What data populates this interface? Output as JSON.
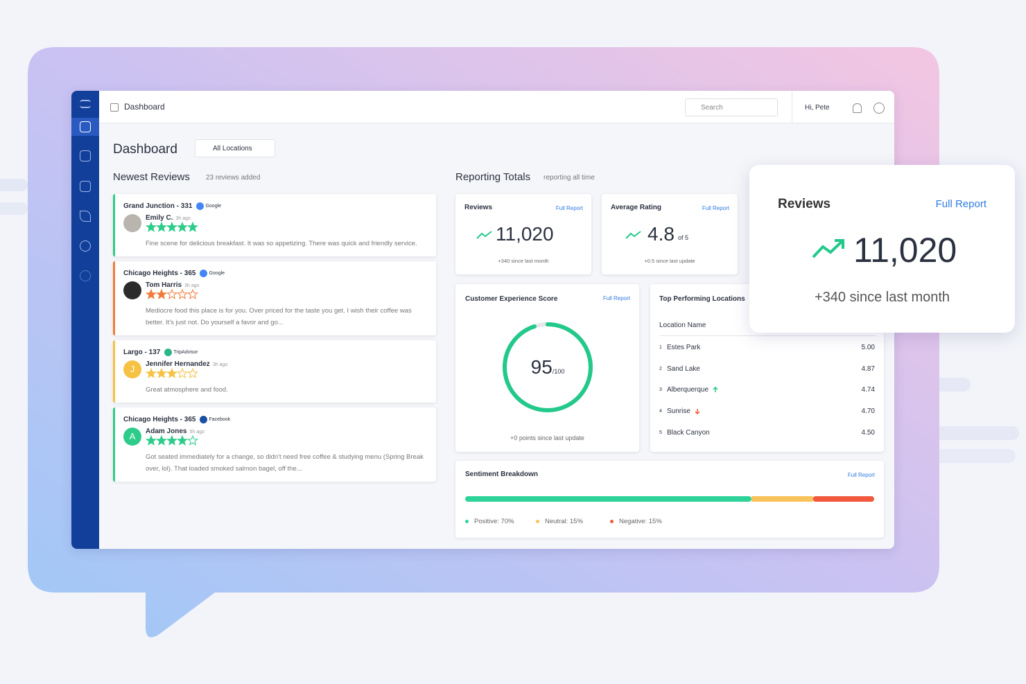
{
  "topbar": {
    "breadcrumb": "Dashboard",
    "search": "Search",
    "greeting": "Hi, Pete"
  },
  "page": {
    "title": "Dashboard",
    "location_filter": "All Locations"
  },
  "reviews": {
    "title": "Newest Reviews",
    "subtitle": "23 reviews added",
    "items": [
      {
        "location": "Grand Junction - 331",
        "source": "Google",
        "source_color": "#4285f4",
        "author": "Emily C.",
        "time": "3h ago",
        "rating": 5,
        "color": "#2ecc8a",
        "avatar_color": "#b9b4ae",
        "text": "Fine scene for delicious breakfast. It was so appetizing. There was quick and friendly service."
      },
      {
        "location": "Chicago Heights - 365",
        "source": "Google",
        "source_color": "#4285f4",
        "author": "Tom Harris",
        "time": "3h ago",
        "rating": 2,
        "color": "#f07c3a",
        "avatar_color": "#2b2b2b",
        "text": "Mediocre food this place is for you. Over priced for the taste you get. I wish their coffee was better. It's just not. Do yourself a favor and go..."
      },
      {
        "location": "Largo - 137",
        "source": "TripAdvisor",
        "source_color": "#2bb58a",
        "author": "Jennifer Hernandez",
        "time": "3h ago",
        "rating": 3,
        "color": "#f6c244",
        "avatar_color": "#f6c244",
        "initial": "J",
        "text": "Great atmosphere and food."
      },
      {
        "location": "Chicago Heights - 365",
        "source": "Facebook",
        "source_color": "#1b4fa3",
        "author": "Adam Jones",
        "time": "5h ago",
        "rating": 4,
        "color": "#2ecc8a",
        "avatar_color": "#2ecc8a",
        "initial": "A",
        "text": "Got seated immediately for a change, so didn't need free coffee & studying menu (Spring Break over, lol). That loaded smoked salmon bagel, off the..."
      }
    ]
  },
  "reporting": {
    "title": "Reporting Totals",
    "subtitle": "reporting all time",
    "reviews_card": {
      "title": "Reviews",
      "link": "Full Report",
      "value": "11,020",
      "change": "+340 since last month"
    },
    "rating_card": {
      "title": "Average Rating",
      "link": "Full Report",
      "value": "4.8",
      "unit": "of 5",
      "change": "+0.5 since last update"
    },
    "experience_card": {
      "title": "Customer Experience Score",
      "link": "Full Report",
      "score": 95,
      "max_label": "/100",
      "max": 100,
      "change": "+0 points since last update",
      "color": "#22c98a"
    },
    "locations_card": {
      "title": "Top Performing Locations",
      "column": "Location Name",
      "rows": [
        {
          "rank": 1,
          "name": "Estes Park",
          "value": "5.00"
        },
        {
          "rank": 2,
          "name": "Sand Lake",
          "value": "4.87"
        },
        {
          "rank": 3,
          "name": "Alberquerque",
          "value": "4.74",
          "trend": "up"
        },
        {
          "rank": 4,
          "name": "Sunrise",
          "value": "4.70",
          "trend": "down"
        },
        {
          "rank": 5,
          "name": "Black Canyon",
          "value": "4.50"
        }
      ]
    },
    "sentiment_card": {
      "title": "Sentiment Breakdown",
      "link": "Full Report",
      "segments": [
        {
          "name": "Positive",
          "value": 70,
          "label": "Positive: 70%",
          "color": "#2ed39a"
        },
        {
          "name": "Neutral",
          "value": 15,
          "label": "Neutral: 15%",
          "color": "#f8c35a"
        },
        {
          "name": "Negative",
          "value": 15,
          "label": "Negative: 15%",
          "color": "#f2583e"
        }
      ]
    }
  },
  "popout": {
    "title": "Reviews",
    "link": "Full Report",
    "value": "11,020",
    "change": "+340 since last month"
  }
}
